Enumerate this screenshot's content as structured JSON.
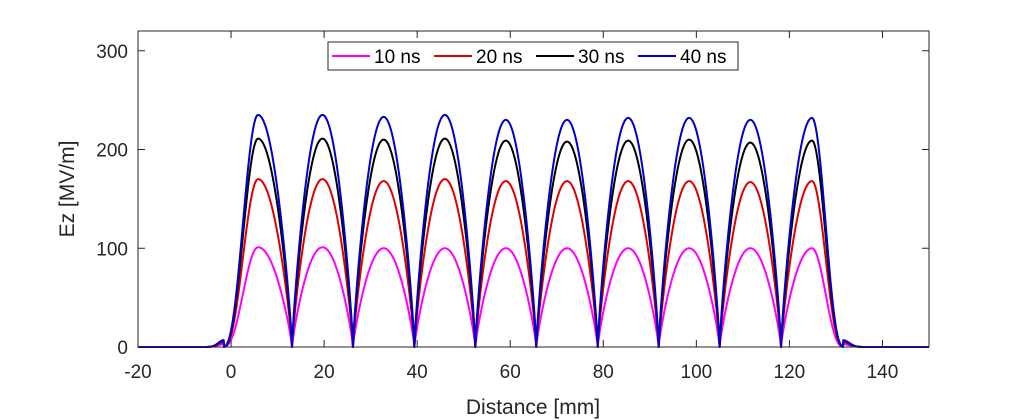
{
  "chart_data": {
    "type": "line",
    "xlabel": "Distance [mm]",
    "ylabel": "Ez [MV/m]",
    "xlim": [
      -20,
      150
    ],
    "ylim": [
      0,
      320
    ],
    "xticks": [
      -20,
      0,
      20,
      40,
      60,
      80,
      100,
      120,
      140
    ],
    "yticks": [
      0,
      100,
      200,
      300
    ],
    "grid": false,
    "legend_position": "top-center",
    "cells": {
      "nodes_mm": [
        -1.5,
        13.1,
        26.2,
        39.4,
        52.5,
        65.6,
        78.8,
        91.9,
        105.0,
        118.2,
        131.5
      ],
      "peak_positions_mm": [
        6.5,
        19.8,
        32.8,
        45.9,
        59.0,
        72.2,
        85.3,
        98.5,
        111.6,
        124.8
      ]
    },
    "series": [
      {
        "name": "10 ns",
        "color": "#ff00ff",
        "peaks": [
          101,
          101,
          100,
          100,
          100,
          100,
          100,
          100,
          100,
          100
        ]
      },
      {
        "name": "20 ns",
        "color": "#e00000",
        "peaks": [
          170,
          170,
          168,
          170,
          168,
          168,
          168,
          168,
          167,
          168
        ]
      },
      {
        "name": "30 ns",
        "color": "#000000",
        "peaks": [
          211,
          211,
          210,
          211,
          209,
          208,
          209,
          210,
          207,
          209
        ]
      },
      {
        "name": "40 ns",
        "color": "#0000d0",
        "peaks": [
          235,
          235,
          233,
          235,
          230,
          230,
          232,
          232,
          230,
          232
        ]
      }
    ]
  }
}
